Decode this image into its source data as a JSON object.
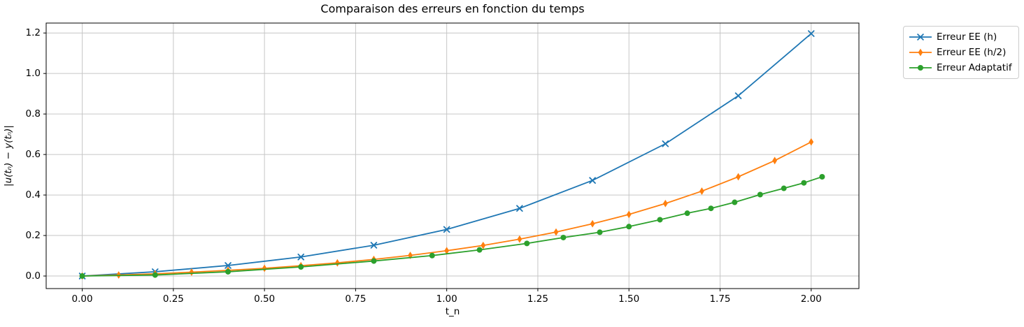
{
  "chart_data": {
    "type": "line",
    "title": "Comparaison des erreurs en fonction du temps",
    "xlabel": "t_n",
    "ylabel": "|u(tₙ) − y(tₙ)|",
    "grid": true,
    "legend_position": "outside-right-top",
    "xlim": [
      -0.099,
      2.131
    ],
    "ylim": [
      -0.062,
      1.249
    ],
    "xticks": [
      0.0,
      0.25,
      0.5,
      0.75,
      1.0,
      1.25,
      1.5,
      1.75,
      2.0
    ],
    "xtick_labels": [
      "0.00",
      "0.25",
      "0.50",
      "0.75",
      "1.00",
      "1.25",
      "1.50",
      "1.75",
      "2.00"
    ],
    "yticks": [
      0.0,
      0.2,
      0.4,
      0.6,
      0.8,
      1.0,
      1.2
    ],
    "ytick_labels": [
      "0.0",
      "0.2",
      "0.4",
      "0.6",
      "0.8",
      "1.0",
      "1.2"
    ],
    "colors": {
      "grid": "#c6c6c6",
      "axis": "#000000",
      "background": "#ffffff"
    },
    "series": [
      {
        "name": "Erreur EE (h)",
        "color": "#1f77b4",
        "marker": "x",
        "x": [
          0.0,
          0.2,
          0.4,
          0.6,
          0.8,
          1.0,
          1.2,
          1.4,
          1.6,
          1.8,
          2.0
        ],
        "y": [
          0.0,
          0.021,
          0.052,
          0.094,
          0.152,
          0.23,
          0.334,
          0.472,
          0.653,
          0.89,
          1.197
        ]
      },
      {
        "name": "Erreur EE (h/2)",
        "color": "#ff7f0e",
        "marker": "thin-diamond",
        "x": [
          0.0,
          0.1,
          0.2,
          0.3,
          0.4,
          0.5,
          0.6,
          0.7,
          0.8,
          0.9,
          1.0,
          1.1,
          1.2,
          1.3,
          1.4,
          1.5,
          1.6,
          1.7,
          1.8,
          1.9,
          2.0
        ],
        "y": [
          0.0,
          0.005,
          0.011,
          0.019,
          0.028,
          0.038,
          0.051,
          0.065,
          0.082,
          0.102,
          0.125,
          0.151,
          0.182,
          0.217,
          0.258,
          0.304,
          0.358,
          0.419,
          0.49,
          0.57,
          0.662
        ]
      },
      {
        "name": "Erreur Adaptatif",
        "color": "#2ca02c",
        "marker": "circle",
        "x": [
          0.0,
          0.2,
          0.4,
          0.6,
          0.8,
          0.96,
          1.09,
          1.22,
          1.32,
          1.42,
          1.5,
          1.585,
          1.66,
          1.725,
          1.79,
          1.86,
          1.925,
          1.98,
          2.03
        ],
        "y": [
          0.0,
          0.005,
          0.021,
          0.045,
          0.074,
          0.101,
          0.129,
          0.161,
          0.19,
          0.216,
          0.244,
          0.278,
          0.31,
          0.334,
          0.364,
          0.402,
          0.433,
          0.46,
          0.49
        ]
      }
    ]
  }
}
